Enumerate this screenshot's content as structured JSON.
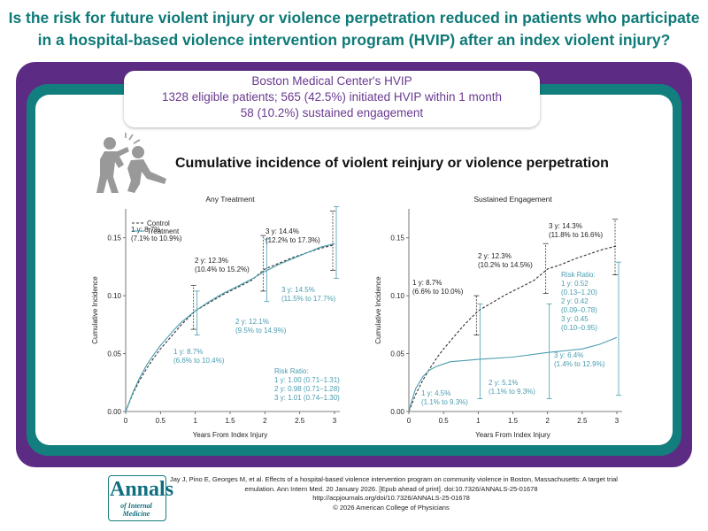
{
  "headline": {
    "line1": "Is the risk for future violent injury or violence perpetration reduced in patients who participate",
    "line2": "in a hospital-based violence intervention program (HVIP) after an index violent injury?"
  },
  "callout": {
    "line1": "Boston Medical Center's HVIP",
    "line2": "1328 eligible patients; 565 (42.5%) initiated HVIP within 1 month",
    "line3": "58 (10.2%) sustained engagement"
  },
  "figure_title": "Cumulative incidence of violent reinjury or violence perpetration",
  "colors": {
    "control": "#333333",
    "treatment": "#4a9db0",
    "teal": "#127f7e",
    "purple": "#5c2c84"
  },
  "chart_data": [
    {
      "type": "line",
      "title": "Any Treatment",
      "xlabel": "Years From Index Injury",
      "ylabel": "Cumulative Incidence",
      "xlim": [
        0,
        3
      ],
      "ylim": [
        0,
        0.175
      ],
      "x_ticks": [
        "0",
        "0.5",
        "1",
        "1.5",
        "2",
        "2.5",
        "3"
      ],
      "y_ticks": [
        "0.00",
        "0.05",
        "0.10",
        "0.15"
      ],
      "legend": {
        "position": "top-left",
        "entries": [
          "Control",
          "Treatment"
        ]
      },
      "series": [
        {
          "name": "Control",
          "style": "dashed",
          "x": [
            0,
            0.1,
            0.2,
            0.3,
            0.4,
            0.5,
            0.6,
            0.7,
            0.8,
            0.9,
            1,
            1.2,
            1.4,
            1.6,
            1.8,
            2,
            2.2,
            2.4,
            2.6,
            2.8,
            3
          ],
          "values": [
            0,
            0.015,
            0.027,
            0.037,
            0.046,
            0.054,
            0.061,
            0.068,
            0.075,
            0.081,
            0.087,
            0.094,
            0.101,
            0.107,
            0.113,
            0.123,
            0.128,
            0.133,
            0.137,
            0.141,
            0.144
          ]
        },
        {
          "name": "Treatment",
          "style": "solid",
          "x": [
            0,
            0.1,
            0.2,
            0.3,
            0.4,
            0.5,
            0.6,
            0.7,
            0.8,
            0.9,
            1,
            1.2,
            1.4,
            1.6,
            1.8,
            2,
            2.2,
            2.4,
            2.6,
            2.8,
            3
          ],
          "values": [
            0,
            0.016,
            0.029,
            0.04,
            0.049,
            0.057,
            0.064,
            0.071,
            0.077,
            0.082,
            0.087,
            0.095,
            0.102,
            0.108,
            0.114,
            0.121,
            0.127,
            0.132,
            0.137,
            0.142,
            0.145
          ]
        }
      ],
      "intervals": [
        {
          "series": "Control",
          "x": 1,
          "low": 0.071,
          "high": 0.109
        },
        {
          "series": "Control",
          "x": 2,
          "low": 0.104,
          "high": 0.152
        },
        {
          "series": "Control",
          "x": 3,
          "low": 0.122,
          "high": 0.173
        },
        {
          "series": "Treatment",
          "x": 1,
          "low": 0.066,
          "high": 0.104
        },
        {
          "series": "Treatment",
          "x": 2,
          "low": 0.095,
          "high": 0.149
        },
        {
          "series": "Treatment",
          "x": 3,
          "low": 0.115,
          "high": 0.177
        }
      ],
      "annotations": [
        {
          "series": "Control",
          "lines": [
            "1 y: 8.7%",
            "(7.1% to 10.9%)"
          ]
        },
        {
          "series": "Control",
          "lines": [
            "2 y: 12.3%",
            "(10.4% to 15.2%)"
          ]
        },
        {
          "series": "Control",
          "lines": [
            "3 y: 14.4%",
            "(12.2% to 17.3%)"
          ]
        },
        {
          "series": "Treatment",
          "lines": [
            "3 y: 14.5%",
            "(11.5% to 17.7%)"
          ]
        },
        {
          "series": "Treatment",
          "lines": [
            "2 y: 12.1%",
            "(9.5% to 14.9%)"
          ]
        },
        {
          "series": "Treatment",
          "lines": [
            "1 y: 8.7%",
            "(6.6% to 10.4%)"
          ]
        },
        {
          "series": "Treatment",
          "lines": [
            "Risk Ratio:",
            "1 y: 1.00 (0.71–1.31)",
            "2 y: 0.98 (0.71–1.28)",
            "3 y: 1.01 (0.74–1.30)"
          ]
        }
      ]
    },
    {
      "type": "line",
      "title": "Sustained Engagement",
      "xlabel": "Years From Index Injury",
      "ylabel": "Cumulative Incidence",
      "xlim": [
        0,
        3
      ],
      "ylim": [
        0,
        0.175
      ],
      "x_ticks": [
        "0",
        "0.5",
        "1",
        "1.5",
        "2",
        "2.5",
        "3"
      ],
      "y_ticks": [
        "0.00",
        "0.05",
        "0.10",
        "0.15"
      ],
      "series": [
        {
          "name": "Control",
          "style": "dashed",
          "x": [
            0,
            0.1,
            0.2,
            0.3,
            0.4,
            0.5,
            0.6,
            0.7,
            0.8,
            0.9,
            1,
            1.2,
            1.4,
            1.6,
            1.8,
            2,
            2.2,
            2.4,
            2.6,
            2.8,
            3
          ],
          "values": [
            0,
            0.015,
            0.027,
            0.037,
            0.046,
            0.054,
            0.061,
            0.068,
            0.075,
            0.081,
            0.087,
            0.094,
            0.101,
            0.107,
            0.113,
            0.123,
            0.127,
            0.132,
            0.136,
            0.14,
            0.143
          ]
        },
        {
          "name": "Treatment",
          "style": "solid",
          "x": [
            0,
            0.05,
            0.1,
            0.2,
            0.3,
            0.4,
            0.5,
            0.6,
            0.8,
            1,
            1.5,
            2,
            2.5,
            2.75,
            3
          ],
          "values": [
            0,
            0.011,
            0.02,
            0.03,
            0.036,
            0.039,
            0.041,
            0.043,
            0.044,
            0.045,
            0.047,
            0.051,
            0.054,
            0.058,
            0.064
          ]
        }
      ],
      "intervals": [
        {
          "series": "Control",
          "x": 1,
          "low": 0.066,
          "high": 0.1
        },
        {
          "series": "Control",
          "x": 2,
          "low": 0.102,
          "high": 0.145
        },
        {
          "series": "Control",
          "x": 3,
          "low": 0.118,
          "high": 0.166
        },
        {
          "series": "Treatment",
          "x": 1,
          "low": 0.011,
          "high": 0.093
        },
        {
          "series": "Treatment",
          "x": 2,
          "low": 0.011,
          "high": 0.093
        },
        {
          "series": "Treatment",
          "x": 3,
          "low": 0.014,
          "high": 0.129
        }
      ],
      "annotations": [
        {
          "series": "Control",
          "lines": [
            "1 y: 8.7%",
            "(6.6% to 10.0%)"
          ]
        },
        {
          "series": "Control",
          "lines": [
            "2 y: 12.3%",
            "(10.2% to 14.5%)"
          ]
        },
        {
          "series": "Control",
          "lines": [
            "3 y: 14.3%",
            "(11.8% to 16.6%)"
          ]
        },
        {
          "series": "Treatment",
          "lines": [
            "Risk Ratio:",
            "1 y: 0.52",
            "(0.13–1.20)",
            "2 y: 0.42",
            "(0.09–0.78)",
            "3 y: 0.45",
            "(0.10–0.95)"
          ]
        },
        {
          "series": "Treatment",
          "lines": [
            "1 y: 4.5%",
            "(1.1% to 9.3%)"
          ]
        },
        {
          "series": "Treatment",
          "lines": [
            "2 y: 5.1%",
            "(1.1% to 9.3%)"
          ]
        },
        {
          "series": "Treatment",
          "lines": [
            "3 y: 6.4%",
            "(1.4% to 12.9%)"
          ]
        }
      ]
    }
  ],
  "footer": {
    "logo_main": "Annals",
    "logo_sub": "of Internal Medicine",
    "citation": [
      "Jay J, Pino E, Georges M, et al. Effects of a hospital-based violence intervention program on community violence in Boston, Massachusetts: A target trial",
      "emulation. Ann Intern Med. 20 January 2026. [Epub ahead of print]. doi:10.7326/ANNALS-25-01678",
      "http://acpjournals.org/doi/10.7326/ANNALS-25-01678",
      "© 2026 American College of Physicians"
    ]
  }
}
